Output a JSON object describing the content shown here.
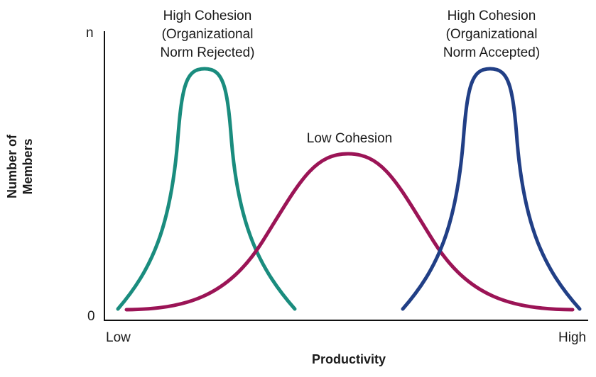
{
  "axes": {
    "y_label_line1": "Number of",
    "y_label_line2": "Members",
    "x_label": "Productivity",
    "y_top_tick": "n",
    "y_bottom_tick": "0",
    "x_left_tick": "Low",
    "x_right_tick": "High"
  },
  "curves": [
    {
      "line1": "High Cohesion",
      "line2": "(Organizational",
      "line3": "Norm Rejected)",
      "color": "#1a8c7e"
    },
    {
      "line1": "Low Cohesion",
      "color": "#9b1456"
    },
    {
      "line1": "High Cohesion",
      "line2": "(Organizational",
      "line3": "Norm Accepted)",
      "color": "#213f86"
    }
  ]
}
